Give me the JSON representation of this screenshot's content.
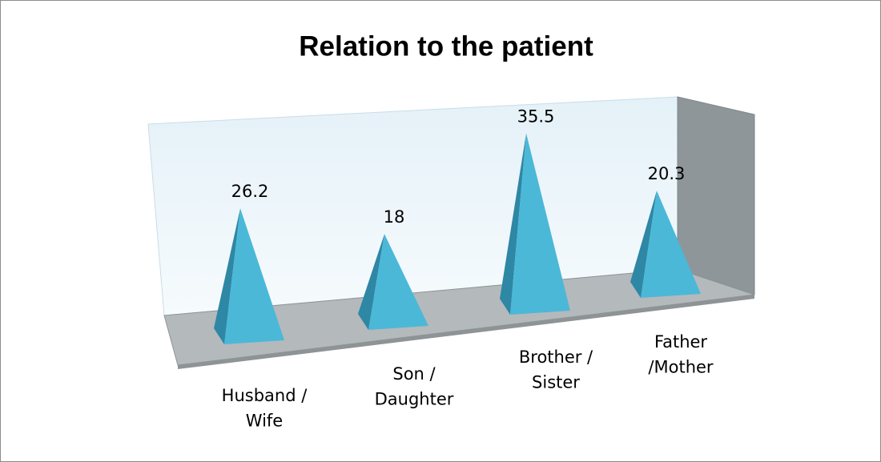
{
  "chart_data": {
    "type": "pyramid",
    "title": "Relation to the patient",
    "categories": [
      "Husband /\nWife",
      "Son /\nDaughter",
      "Brother /\nSister",
      "Father\n/Mother"
    ],
    "values": [
      26.2,
      18,
      35.5,
      20.3
    ],
    "color": "#4bb8d8"
  }
}
